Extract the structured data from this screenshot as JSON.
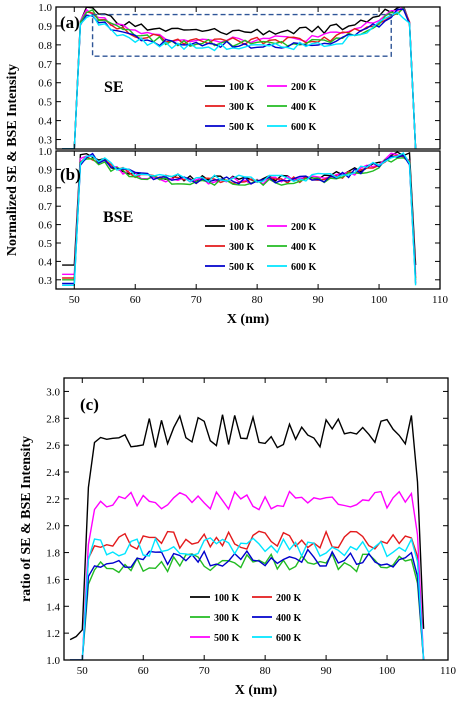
{
  "chart_data": [
    {
      "id": "a",
      "type": "line",
      "panel_label": "(a)",
      "annotation": "SE",
      "ylim": [
        0.25,
        1.0
      ],
      "xlim": [
        47,
        110
      ],
      "yticks": [
        0.3,
        0.4,
        0.5,
        0.6,
        0.7,
        0.8,
        0.9,
        1.0
      ],
      "ytick_labels": [
        "0.3",
        "0.4",
        "0.5",
        "0.6",
        "0.7",
        "0.8",
        "0.9",
        "1.0"
      ],
      "xticks": [
        50,
        60,
        70,
        80,
        90,
        100,
        110
      ],
      "xtick_labels": [],
      "highlight_box": {
        "x": [
          53,
          102
        ],
        "y": [
          0.74,
          0.96
        ],
        "style": "dashed"
      },
      "series": [
        {
          "name": "100 K",
          "color": "#000000",
          "plateau": 0.87,
          "rim": 1.0,
          "bottom": 0.25
        },
        {
          "name": "200 K",
          "color": "#ff00ff",
          "plateau": 0.83,
          "rim": 0.99,
          "bottom": 0.25
        },
        {
          "name": "300 K",
          "color": "#e31a1c",
          "plateau": 0.82,
          "rim": 0.98,
          "bottom": 0.25
        },
        {
          "name": "400 K",
          "color": "#22bb22",
          "plateau": 0.81,
          "rim": 0.98,
          "bottom": 0.25
        },
        {
          "name": "500 K",
          "color": "#0000cc",
          "plateau": 0.8,
          "rim": 0.97,
          "bottom": 0.25
        },
        {
          "name": "600 K",
          "color": "#00e5ff",
          "plateau": 0.79,
          "rim": 0.96,
          "bottom": 0.25
        }
      ]
    },
    {
      "id": "b",
      "type": "line",
      "panel_label": "(b)",
      "annotation": "BSE",
      "ylim": [
        0.25,
        1.0
      ],
      "xlim": [
        47,
        110
      ],
      "yticks": [
        0.3,
        0.4,
        0.5,
        0.6,
        0.7,
        0.8,
        0.9,
        1.0
      ],
      "ytick_labels": [
        "0.3",
        "0.4",
        "0.5",
        "0.6",
        "0.7",
        "0.8",
        "0.9",
        "1.0"
      ],
      "xticks": [
        50,
        60,
        70,
        80,
        90,
        100,
        110
      ],
      "xtick_labels": [
        "50",
        "60",
        "70",
        "80",
        "90",
        "100",
        "110"
      ],
      "xlabel": "X (nm)",
      "series": [
        {
          "name": "100 K",
          "color": "#000000",
          "plateau": 0.85,
          "rim": 0.99,
          "bottom": 0.38
        },
        {
          "name": "200 K",
          "color": "#ff00ff",
          "plateau": 0.84,
          "rim": 0.98,
          "bottom": 0.33
        },
        {
          "name": "300 K",
          "color": "#e31a1c",
          "plateau": 0.84,
          "rim": 0.98,
          "bottom": 0.31
        },
        {
          "name": "400 K",
          "color": "#22bb22",
          "plateau": 0.83,
          "rim": 0.97,
          "bottom": 0.3
        },
        {
          "name": "500 K",
          "color": "#0000cc",
          "plateau": 0.84,
          "rim": 0.98,
          "bottom": 0.28
        },
        {
          "name": "600 K",
          "color": "#00e5ff",
          "plateau": 0.85,
          "rim": 0.99,
          "bottom": 0.27
        }
      ]
    },
    {
      "id": "c",
      "type": "line",
      "panel_label": "(c)",
      "ylim": [
        1.0,
        3.1
      ],
      "xlim": [
        47,
        110
      ],
      "yticks": [
        1.0,
        1.2,
        1.4,
        1.6,
        1.8,
        2.0,
        2.2,
        2.4,
        2.6,
        2.8,
        3.0
      ],
      "ytick_labels": [
        "1.0",
        "1.2",
        "1.4",
        "1.6",
        "1.8",
        "2.0",
        "2.2",
        "2.4",
        "2.6",
        "2.8",
        "3.0"
      ],
      "xticks": [
        50,
        60,
        70,
        80,
        90,
        100,
        110
      ],
      "xtick_labels": [
        "50",
        "60",
        "70",
        "80",
        "90",
        "100",
        "110"
      ],
      "xlabel": "X (nm)",
      "ylabel": "ratio of SE & BSE Intensity",
      "series": [
        {
          "name": "100 K",
          "color": "#000000",
          "plateau": 2.7,
          "edge": 2.3,
          "outside": 1.2
        },
        {
          "name": "200 K",
          "color": "#e31a1c",
          "plateau": 1.89,
          "edge": 1.75,
          "outside": 1.0
        },
        {
          "name": "300 K",
          "color": "#22bb22",
          "plateau": 1.72,
          "edge": 1.6,
          "outside": 1.0
        },
        {
          "name": "400 K",
          "color": "#0000cc",
          "plateau": 1.76,
          "edge": 1.62,
          "outside": 1.0
        },
        {
          "name": "500 K",
          "color": "#ff00ff",
          "plateau": 2.19,
          "edge": 1.9,
          "outside": 1.0
        },
        {
          "name": "600 K",
          "color": "#00e5ff",
          "plateau": 1.84,
          "edge": 1.75,
          "outside": 1.0
        }
      ]
    }
  ],
  "shared_ylabel": "Normalized SE & BSE Intensity"
}
